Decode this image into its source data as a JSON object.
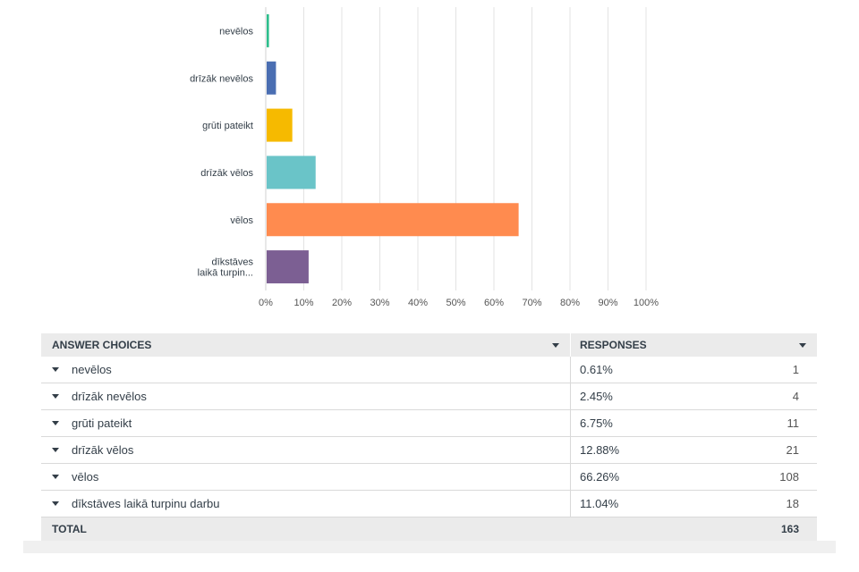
{
  "chart_data": {
    "type": "bar",
    "orientation": "horizontal",
    "categories": [
      "nevēlos",
      "drīzāk nevēlos",
      "grūti pateikt",
      "drīzāk vēlos",
      "vēlos",
      "dīkstāves laikā turpin..."
    ],
    "category_lines": [
      [
        "nevēlos"
      ],
      [
        "drīzāk nevēlos"
      ],
      [
        "grūti pateikt"
      ],
      [
        "drīzāk vēlos"
      ],
      [
        "vēlos"
      ],
      [
        "dīkstāves",
        "laikā turpin..."
      ]
    ],
    "values": [
      0.61,
      2.45,
      6.75,
      12.88,
      66.26,
      11.04
    ],
    "colors": [
      "#2dbe8c",
      "#4a6eb2",
      "#f6ba00",
      "#6ac4c8",
      "#ff8b4f",
      "#7c5f93"
    ],
    "x_ticks": [
      "0%",
      "10%",
      "20%",
      "30%",
      "40%",
      "50%",
      "60%",
      "70%",
      "80%",
      "90%",
      "100%"
    ],
    "xlim": [
      0,
      100
    ],
    "grid": true,
    "title": "",
    "xlabel": "",
    "ylabel": ""
  },
  "table": {
    "header": {
      "choices": "ANSWER CHOICES",
      "responses": "RESPONSES"
    },
    "rows": [
      {
        "label": "nevēlos",
        "pct": "0.61%",
        "count": "1"
      },
      {
        "label": "drīzāk nevēlos",
        "pct": "2.45%",
        "count": "4"
      },
      {
        "label": "grūti pateikt",
        "pct": "6.75%",
        "count": "11"
      },
      {
        "label": "drīzāk vēlos",
        "pct": "12.88%",
        "count": "21"
      },
      {
        "label": "vēlos",
        "pct": "66.26%",
        "count": "108"
      },
      {
        "label": "dīkstāves laikā turpinu darbu",
        "pct": "11.04%",
        "count": "18"
      }
    ],
    "total": {
      "label": "TOTAL",
      "count": "163"
    }
  }
}
